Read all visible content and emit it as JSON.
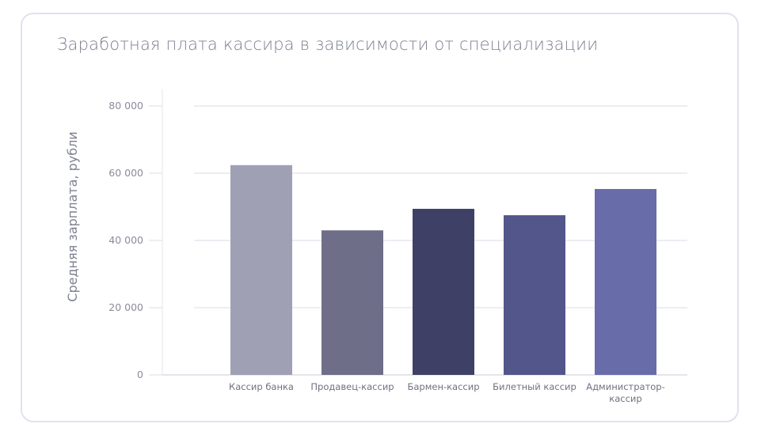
{
  "chart_data": {
    "type": "bar",
    "title": "Заработная плата кассира в зависимости от специализации",
    "xlabel": "",
    "ylabel": "Средняя зарплата, рубли",
    "ylim": [
      0,
      80000
    ],
    "yticks": [
      0,
      20000,
      40000,
      60000,
      80000
    ],
    "ytick_labels": [
      "0",
      "20 000",
      "40 000",
      "60 000",
      "80 000"
    ],
    "grid": true,
    "categories": [
      [
        "Кассир банка"
      ],
      [
        "Продавец-кассир"
      ],
      [
        "Бармен-кассир"
      ],
      [
        "Билетный кассир"
      ],
      [
        "Администратор-",
        "кассир"
      ]
    ],
    "values": [
      62400,
      43000,
      49400,
      47500,
      55300
    ],
    "colors": [
      "#a0a0b4",
      "#6e6e88",
      "#3e4066",
      "#52568a",
      "#686ca8"
    ]
  }
}
